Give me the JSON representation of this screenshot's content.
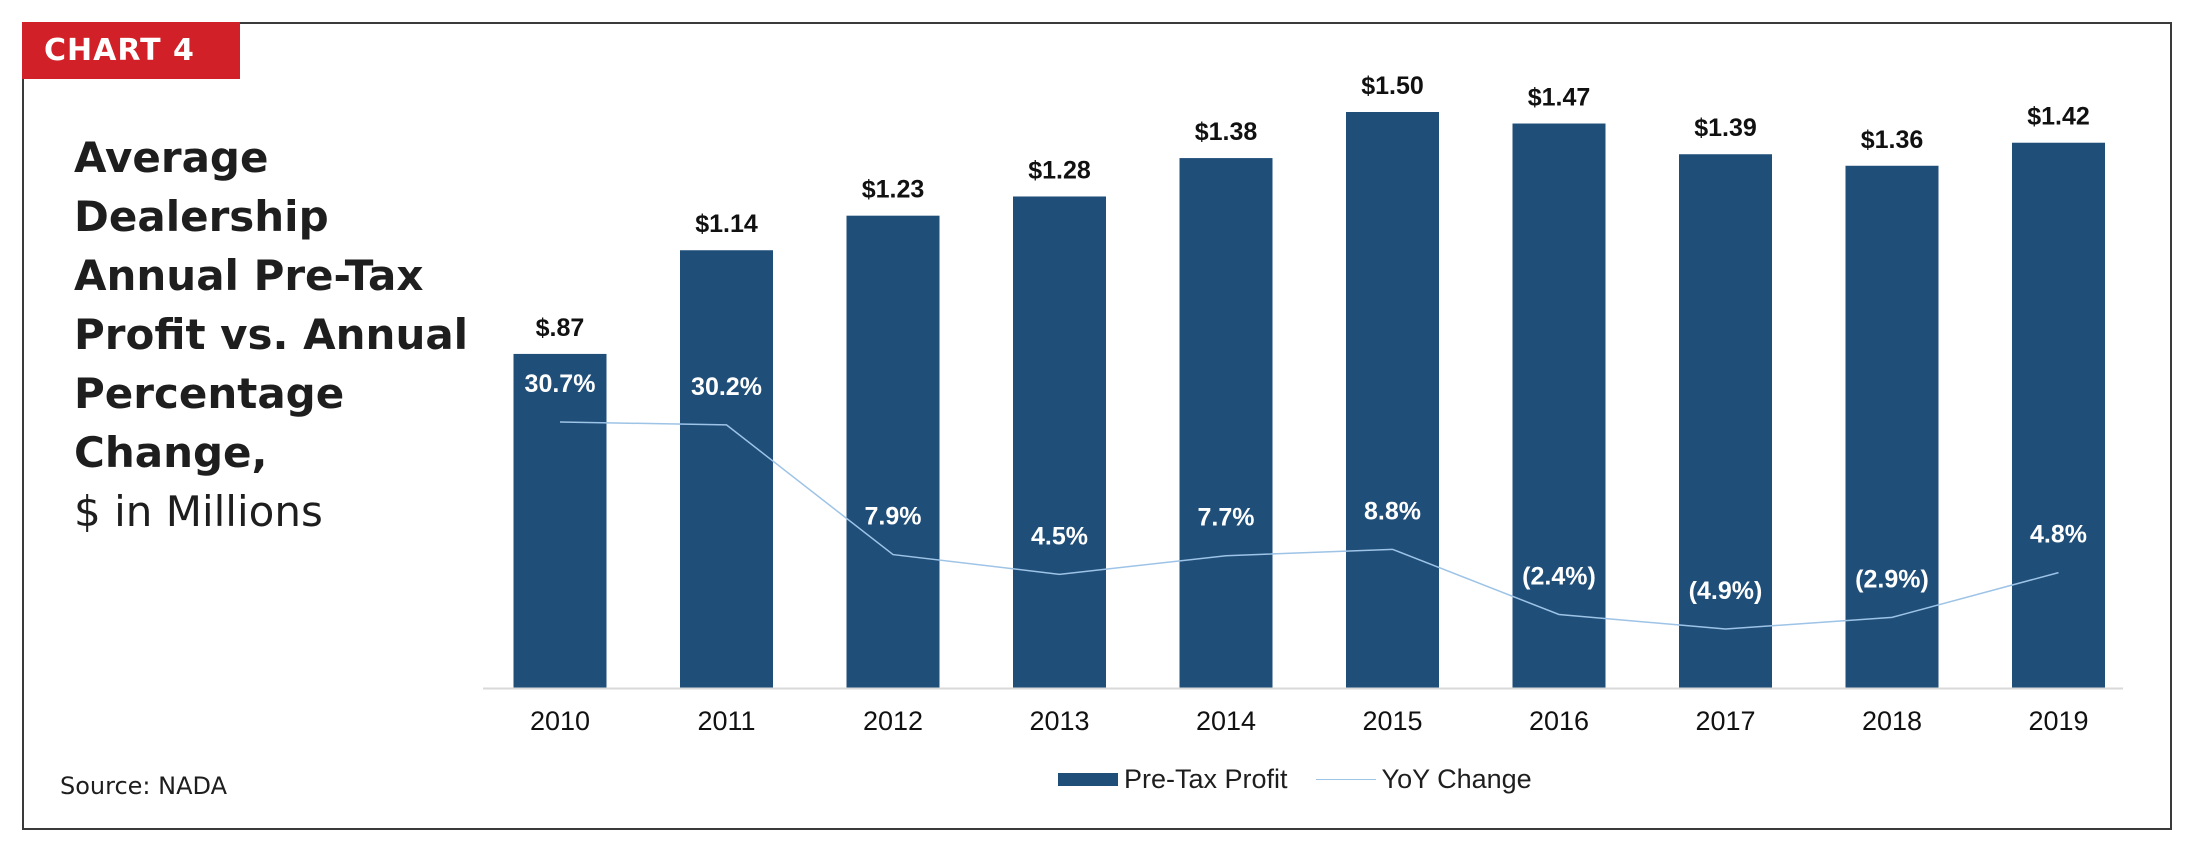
{
  "badge": "CHART 4",
  "title": "Average Dealership Annual Pre-Tax Profit vs. Annual Percentage Change,",
  "subtitle": "$ in Millions",
  "source": "Source: NADA",
  "colors": {
    "bar": "#1f4e79",
    "line": "#9dc3e6",
    "badge": "#d12027"
  },
  "chart_data": {
    "type": "bar",
    "categories": [
      "2010",
      "2011",
      "2012",
      "2013",
      "2014",
      "2015",
      "2016",
      "2017",
      "2018",
      "2019"
    ],
    "series": [
      {
        "name": "Pre-Tax Profit",
        "type": "bar",
        "values": [
          0.87,
          1.14,
          1.23,
          1.28,
          1.38,
          1.5,
          1.47,
          1.39,
          1.36,
          1.42
        ],
        "labels": [
          "$.87",
          "$1.14",
          "$1.23",
          "$1.28",
          "$1.38",
          "$1.50",
          "$1.47",
          "$1.39",
          "$1.36",
          "$1.42"
        ]
      },
      {
        "name": "YoY Change",
        "type": "line",
        "values": [
          30.7,
          30.2,
          7.9,
          4.5,
          7.7,
          8.8,
          -2.4,
          -4.9,
          -2.9,
          4.8
        ],
        "labels": [
          "30.7%",
          "30.2%",
          "7.9%",
          "4.5%",
          "7.7%",
          "8.8%",
          "(2.4%)",
          "(4.9%)",
          "(2.9%)",
          "4.8%"
        ]
      }
    ],
    "ylim": [
      0,
      1.5
    ],
    "y2lim": [
      -40,
      60
    ],
    "grid": false,
    "legend": "bottom"
  }
}
